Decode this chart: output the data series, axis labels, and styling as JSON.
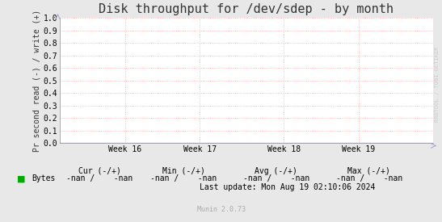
{
  "title": "Disk throughput for /dev/sdep - by month",
  "ylabel": "Pr second read (-) / write (+)",
  "ylim": [
    0.0,
    1.0
  ],
  "yticks": [
    0.0,
    0.1,
    0.2,
    0.3,
    0.4,
    0.5,
    0.6,
    0.7,
    0.8,
    0.9,
    1.0
  ],
  "xtick_labels": [
    "Week 16",
    "Week 17",
    "Week 18",
    "Week 19"
  ],
  "xtick_positions": [
    0.175,
    0.375,
    0.6,
    0.8
  ],
  "bg_color": "#e8e8e8",
  "plot_bg_color": "#ffffff",
  "grid_color": "#ffaaaa",
  "grid_style": "dotted",
  "line_color": "#0000cc",
  "border_color": "#888888",
  "watermark_text": "RRDTOOL / TOBI OETIKER",
  "watermark_color": "#cccccc",
  "legend_label": "Bytes",
  "legend_color": "#00aa00",
  "cur_label": "Cur (-/+)",
  "min_label": "Min (-/+)",
  "avg_label": "Avg (-/+)",
  "max_label": "Max (-/+)",
  "cur_val": "-nan /    -nan",
  "min_val": "-nan /    -nan",
  "avg_val": "-nan /    -nan",
  "max_val": "-nan /    -nan",
  "last_update": "Last update: Mon Aug 19 02:10:06 2024",
  "munin_label": "Munin 2.0.73",
  "title_fontsize": 11,
  "axis_label_fontsize": 7,
  "tick_fontsize": 7,
  "footer_fontsize": 7,
  "munin_fontsize": 6,
  "watermark_fontsize": 5
}
